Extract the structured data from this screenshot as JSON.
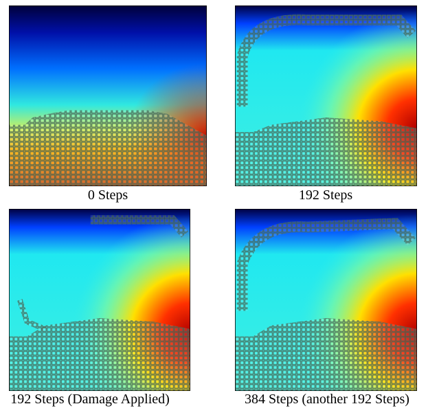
{
  "panels": [
    {
      "caption": "0 Steps"
    },
    {
      "caption": "192 Steps"
    },
    {
      "caption": "192 Steps (Damage Applied)"
    },
    {
      "caption": "384 Steps (another 192 Steps)"
    }
  ]
}
